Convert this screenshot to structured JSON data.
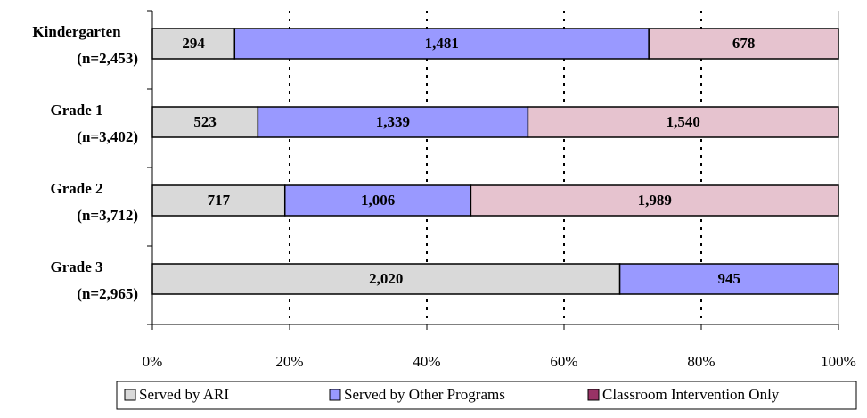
{
  "chart_data": {
    "type": "stacked_bar_100",
    "categories": [
      [
        "Kindergarten",
        "(n=2,453)"
      ],
      [
        "Grade 1",
        "(n=3,402)"
      ],
      [
        "Grade 2",
        "(n=3,712)"
      ],
      [
        "Grade 3",
        "(n=2,965)"
      ]
    ],
    "series": [
      {
        "name": "Served by ARI",
        "color": "#d9d9d9",
        "legend_color": "#d9d9d9",
        "values": [
          294,
          523,
          717,
          2020
        ],
        "value_labels": [
          "294",
          "523",
          "717",
          "2,020"
        ]
      },
      {
        "name": "Served by Other Programs",
        "color": "#9999ff",
        "legend_color": "#9999ff",
        "values": [
          1481,
          1339,
          1006,
          945
        ],
        "value_labels": [
          "1,481",
          "1,339",
          "1,006",
          "945"
        ]
      },
      {
        "name": "Classroom Intervention Only",
        "color": "#e6c3cf",
        "legend_color": "#993366",
        "values": [
          678,
          1540,
          1989,
          null
        ],
        "value_labels": [
          "678",
          "1,540",
          "1,989",
          null
        ]
      }
    ],
    "xlim": [
      0,
      100
    ],
    "xticks": [
      {
        "value": 0,
        "label": "0%"
      },
      {
        "value": 20,
        "label": "20%"
      },
      {
        "value": 40,
        "label": "40%"
      },
      {
        "value": 60,
        "label": "60%"
      },
      {
        "value": 80,
        "label": "80%"
      },
      {
        "value": 100,
        "label": "100%"
      }
    ],
    "grid": true,
    "legend": "bottom"
  }
}
